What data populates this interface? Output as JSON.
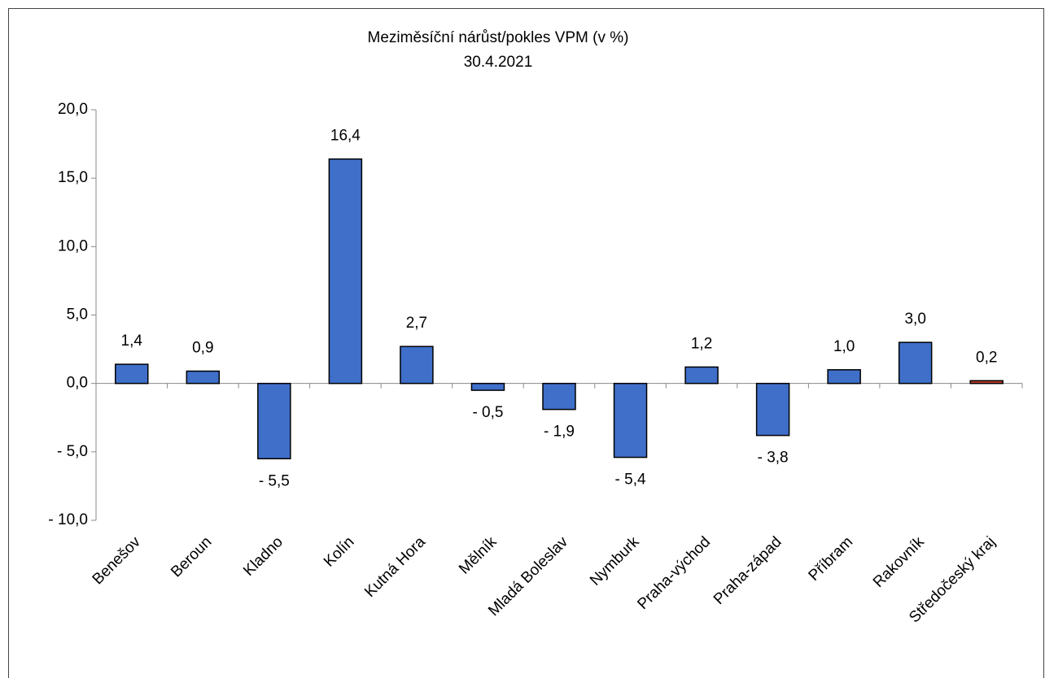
{
  "chart_data": {
    "type": "bar",
    "title": "Meziměsíční nárůst/pokles VPM (v %)",
    "subtitle": "30.4.2021",
    "categories": [
      "Benešov",
      "Beroun",
      "Kladno",
      "Kolín",
      "Kutná Hora",
      "Mělník",
      "Mladá Boleslav",
      "Nymburk",
      "Praha-východ",
      "Praha-západ",
      "Příbram",
      "Rakovník",
      "Středočeský kraj"
    ],
    "values": [
      1.4,
      0.9,
      -5.5,
      16.4,
      2.7,
      -0.5,
      -1.9,
      -5.4,
      1.2,
      -3.8,
      1.0,
      3.0,
      0.2
    ],
    "value_labels": [
      "1,4",
      "0,9",
      "- 5,5",
      "16,4",
      "2,7",
      "- 0,5",
      "- 1,9",
      "- 5,4",
      "1,2",
      "- 3,8",
      "1,0",
      "3,0",
      "0,2"
    ],
    "colors": [
      "#3f6fc9",
      "#3f6fc9",
      "#3f6fc9",
      "#3f6fc9",
      "#3f6fc9",
      "#3f6fc9",
      "#3f6fc9",
      "#3f6fc9",
      "#3f6fc9",
      "#3f6fc9",
      "#3f6fc9",
      "#3f6fc9",
      "#c0392b"
    ],
    "ylim": [
      -10,
      20
    ],
    "yticks": [
      {
        "value": -10,
        "label": "- 10,0"
      },
      {
        "value": -5,
        "label": "- 5,0"
      },
      {
        "value": 0,
        "label": "0,0"
      },
      {
        "value": 5,
        "label": "5,0"
      },
      {
        "value": 10,
        "label": "10,0"
      },
      {
        "value": 15,
        "label": "15,0"
      },
      {
        "value": 20,
        "label": "20,0"
      }
    ],
    "grid": false
  }
}
